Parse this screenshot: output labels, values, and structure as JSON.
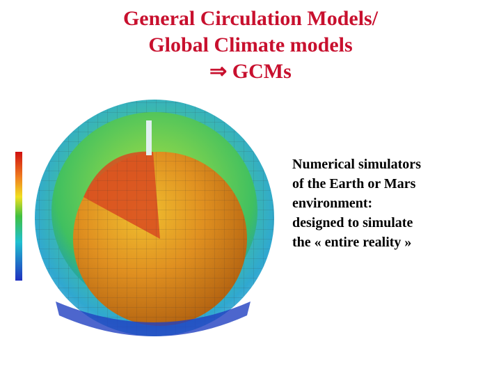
{
  "title": {
    "lines": [
      "General Circulation Models/",
      "Global Climate models",
      "⇒ GCMs"
    ]
  },
  "body": {
    "lines": [
      "Numerical simulators",
      "of the Earth or Mars",
      "environment:",
      "designed to simulate",
      "the « entire reality »"
    ]
  }
}
